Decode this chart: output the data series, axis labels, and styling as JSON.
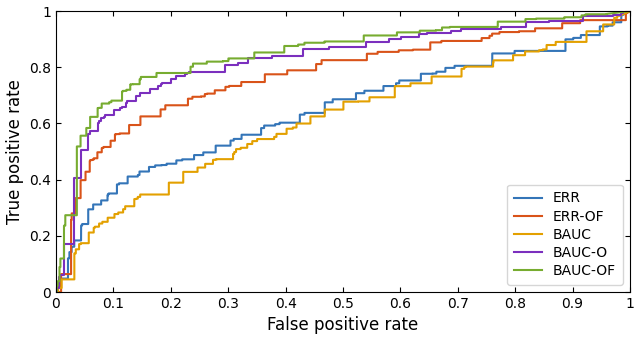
{
  "title": "",
  "xlabel": "False positive rate",
  "ylabel": "True positive rate",
  "xlim": [
    0,
    1
  ],
  "ylim": [
    0,
    1
  ],
  "legend_labels": [
    "ERR",
    "ERR-OF",
    "BAUC",
    "BAUC-O",
    "BAUC-OF"
  ],
  "colors": [
    "#3475b8",
    "#d95319",
    "#e3a000",
    "#7b2fbe",
    "#77ac30"
  ],
  "linewidth": 1.5,
  "legend_loc": "lower right",
  "xticks": [
    0,
    0.1,
    0.2,
    0.3,
    0.4,
    0.5,
    0.6,
    0.7,
    0.8,
    0.9,
    1
  ],
  "yticks": [
    0,
    0.2,
    0.4,
    0.6,
    0.8,
    1
  ],
  "ERR_waypoints": [
    [
      0,
      0
    ],
    [
      0.01,
      0.05
    ],
    [
      0.02,
      0.12
    ],
    [
      0.03,
      0.17
    ],
    [
      0.04,
      0.22
    ],
    [
      0.05,
      0.27
    ],
    [
      0.06,
      0.3
    ],
    [
      0.07,
      0.32
    ],
    [
      0.08,
      0.33
    ],
    [
      0.09,
      0.35
    ],
    [
      0.1,
      0.37
    ],
    [
      0.12,
      0.4
    ],
    [
      0.14,
      0.42
    ],
    [
      0.16,
      0.44
    ],
    [
      0.18,
      0.45
    ],
    [
      0.2,
      0.46
    ],
    [
      0.22,
      0.48
    ],
    [
      0.25,
      0.5
    ],
    [
      0.28,
      0.52
    ],
    [
      0.3,
      0.54
    ],
    [
      0.32,
      0.55
    ],
    [
      0.35,
      0.58
    ],
    [
      0.38,
      0.6
    ],
    [
      0.4,
      0.62
    ],
    [
      0.42,
      0.63
    ],
    [
      0.44,
      0.65
    ],
    [
      0.46,
      0.66
    ],
    [
      0.48,
      0.68
    ],
    [
      0.5,
      0.69
    ],
    [
      0.52,
      0.7
    ],
    [
      0.55,
      0.72
    ],
    [
      0.58,
      0.73
    ],
    [
      0.6,
      0.75
    ],
    [
      0.62,
      0.76
    ],
    [
      0.65,
      0.78
    ],
    [
      0.68,
      0.8
    ],
    [
      0.7,
      0.8
    ],
    [
      0.72,
      0.82
    ],
    [
      0.75,
      0.84
    ],
    [
      0.78,
      0.85
    ],
    [
      0.8,
      0.86
    ],
    [
      0.82,
      0.87
    ],
    [
      0.85,
      0.88
    ],
    [
      0.88,
      0.9
    ],
    [
      0.9,
      0.91
    ],
    [
      0.92,
      0.92
    ],
    [
      0.95,
      0.94
    ],
    [
      0.97,
      0.96
    ],
    [
      1.0,
      1.0
    ]
  ],
  "ERR_OF_waypoints": [
    [
      0,
      0
    ],
    [
      0.01,
      0.07
    ],
    [
      0.02,
      0.2
    ],
    [
      0.03,
      0.3
    ],
    [
      0.04,
      0.38
    ],
    [
      0.05,
      0.43
    ],
    [
      0.06,
      0.47
    ],
    [
      0.07,
      0.49
    ],
    [
      0.08,
      0.51
    ],
    [
      0.09,
      0.53
    ],
    [
      0.1,
      0.55
    ],
    [
      0.12,
      0.58
    ],
    [
      0.14,
      0.61
    ],
    [
      0.16,
      0.63
    ],
    [
      0.18,
      0.65
    ],
    [
      0.2,
      0.67
    ],
    [
      0.22,
      0.68
    ],
    [
      0.25,
      0.7
    ],
    [
      0.28,
      0.72
    ],
    [
      0.3,
      0.73
    ],
    [
      0.32,
      0.74
    ],
    [
      0.35,
      0.76
    ],
    [
      0.38,
      0.78
    ],
    [
      0.4,
      0.79
    ],
    [
      0.42,
      0.8
    ],
    [
      0.44,
      0.81
    ],
    [
      0.46,
      0.82
    ],
    [
      0.48,
      0.82
    ],
    [
      0.5,
      0.83
    ],
    [
      0.52,
      0.84
    ],
    [
      0.55,
      0.85
    ],
    [
      0.58,
      0.86
    ],
    [
      0.6,
      0.86
    ],
    [
      0.62,
      0.87
    ],
    [
      0.65,
      0.88
    ],
    [
      0.68,
      0.89
    ],
    [
      0.7,
      0.89
    ],
    [
      0.72,
      0.9
    ],
    [
      0.75,
      0.91
    ],
    [
      0.78,
      0.92
    ],
    [
      0.8,
      0.92
    ],
    [
      0.82,
      0.93
    ],
    [
      0.85,
      0.94
    ],
    [
      0.88,
      0.95
    ],
    [
      0.9,
      0.96
    ],
    [
      0.92,
      0.96
    ],
    [
      0.95,
      0.97
    ],
    [
      0.97,
      0.98
    ],
    [
      1.0,
      1.0
    ]
  ],
  "BAUC_waypoints": [
    [
      0,
      0
    ],
    [
      0.01,
      0.04
    ],
    [
      0.02,
      0.09
    ],
    [
      0.03,
      0.13
    ],
    [
      0.04,
      0.17
    ],
    [
      0.05,
      0.2
    ],
    [
      0.06,
      0.22
    ],
    [
      0.07,
      0.24
    ],
    [
      0.08,
      0.25
    ],
    [
      0.09,
      0.26
    ],
    [
      0.1,
      0.27
    ],
    [
      0.12,
      0.3
    ],
    [
      0.14,
      0.33
    ],
    [
      0.16,
      0.36
    ],
    [
      0.18,
      0.38
    ],
    [
      0.2,
      0.4
    ],
    [
      0.22,
      0.42
    ],
    [
      0.25,
      0.45
    ],
    [
      0.28,
      0.47
    ],
    [
      0.3,
      0.49
    ],
    [
      0.32,
      0.51
    ],
    [
      0.35,
      0.54
    ],
    [
      0.38,
      0.56
    ],
    [
      0.4,
      0.58
    ],
    [
      0.42,
      0.6
    ],
    [
      0.44,
      0.62
    ],
    [
      0.46,
      0.64
    ],
    [
      0.48,
      0.65
    ],
    [
      0.5,
      0.67
    ],
    [
      0.52,
      0.68
    ],
    [
      0.55,
      0.7
    ],
    [
      0.58,
      0.72
    ],
    [
      0.6,
      0.74
    ],
    [
      0.62,
      0.75
    ],
    [
      0.65,
      0.77
    ],
    [
      0.68,
      0.78
    ],
    [
      0.7,
      0.79
    ],
    [
      0.72,
      0.8
    ],
    [
      0.75,
      0.82
    ],
    [
      0.78,
      0.83
    ],
    [
      0.8,
      0.84
    ],
    [
      0.82,
      0.85
    ],
    [
      0.85,
      0.87
    ],
    [
      0.88,
      0.89
    ],
    [
      0.9,
      0.91
    ],
    [
      0.92,
      0.93
    ],
    [
      0.95,
      0.95
    ],
    [
      0.97,
      0.97
    ],
    [
      1.0,
      1.0
    ]
  ],
  "BAUC_O_waypoints": [
    [
      0,
      0
    ],
    [
      0.01,
      0.1
    ],
    [
      0.02,
      0.28
    ],
    [
      0.03,
      0.4
    ],
    [
      0.04,
      0.48
    ],
    [
      0.05,
      0.53
    ],
    [
      0.06,
      0.57
    ],
    [
      0.07,
      0.6
    ],
    [
      0.08,
      0.62
    ],
    [
      0.09,
      0.63
    ],
    [
      0.1,
      0.64
    ],
    [
      0.12,
      0.67
    ],
    [
      0.14,
      0.7
    ],
    [
      0.16,
      0.72
    ],
    [
      0.18,
      0.74
    ],
    [
      0.2,
      0.76
    ],
    [
      0.22,
      0.77
    ],
    [
      0.25,
      0.79
    ],
    [
      0.28,
      0.8
    ],
    [
      0.3,
      0.81
    ],
    [
      0.32,
      0.82
    ],
    [
      0.35,
      0.83
    ],
    [
      0.38,
      0.84
    ],
    [
      0.4,
      0.85
    ],
    [
      0.42,
      0.86
    ],
    [
      0.44,
      0.86
    ],
    [
      0.46,
      0.87
    ],
    [
      0.48,
      0.87
    ],
    [
      0.5,
      0.88
    ],
    [
      0.52,
      0.88
    ],
    [
      0.55,
      0.89
    ],
    [
      0.58,
      0.9
    ],
    [
      0.6,
      0.9
    ],
    [
      0.62,
      0.91
    ],
    [
      0.65,
      0.92
    ],
    [
      0.68,
      0.92
    ],
    [
      0.7,
      0.93
    ],
    [
      0.72,
      0.93
    ],
    [
      0.75,
      0.94
    ],
    [
      0.78,
      0.95
    ],
    [
      0.8,
      0.95
    ],
    [
      0.82,
      0.96
    ],
    [
      0.85,
      0.96
    ],
    [
      0.88,
      0.97
    ],
    [
      0.9,
      0.97
    ],
    [
      0.92,
      0.98
    ],
    [
      0.95,
      0.98
    ],
    [
      0.97,
      0.99
    ],
    [
      1.0,
      1.0
    ]
  ],
  "BAUC_OF_waypoints": [
    [
      0,
      0
    ],
    [
      0.01,
      0.15
    ],
    [
      0.02,
      0.35
    ],
    [
      0.03,
      0.47
    ],
    [
      0.04,
      0.54
    ],
    [
      0.05,
      0.58
    ],
    [
      0.06,
      0.62
    ],
    [
      0.07,
      0.65
    ],
    [
      0.08,
      0.67
    ],
    [
      0.09,
      0.68
    ],
    [
      0.1,
      0.69
    ],
    [
      0.12,
      0.72
    ],
    [
      0.14,
      0.75
    ],
    [
      0.16,
      0.77
    ],
    [
      0.18,
      0.78
    ],
    [
      0.2,
      0.79
    ],
    [
      0.22,
      0.8
    ],
    [
      0.25,
      0.81
    ],
    [
      0.28,
      0.82
    ],
    [
      0.3,
      0.83
    ],
    [
      0.32,
      0.84
    ],
    [
      0.35,
      0.85
    ],
    [
      0.38,
      0.86
    ],
    [
      0.4,
      0.87
    ],
    [
      0.42,
      0.88
    ],
    [
      0.44,
      0.88
    ],
    [
      0.46,
      0.89
    ],
    [
      0.48,
      0.89
    ],
    [
      0.5,
      0.9
    ],
    [
      0.52,
      0.9
    ],
    [
      0.55,
      0.91
    ],
    [
      0.58,
      0.92
    ],
    [
      0.6,
      0.92
    ],
    [
      0.62,
      0.93
    ],
    [
      0.65,
      0.93
    ],
    [
      0.68,
      0.94
    ],
    [
      0.7,
      0.94
    ],
    [
      0.72,
      0.95
    ],
    [
      0.75,
      0.95
    ],
    [
      0.78,
      0.96
    ],
    [
      0.8,
      0.96
    ],
    [
      0.82,
      0.97
    ],
    [
      0.85,
      0.97
    ],
    [
      0.88,
      0.98
    ],
    [
      0.9,
      0.98
    ],
    [
      0.92,
      0.98
    ],
    [
      0.95,
      0.99
    ],
    [
      0.97,
      0.99
    ],
    [
      1.0,
      1.0
    ]
  ]
}
